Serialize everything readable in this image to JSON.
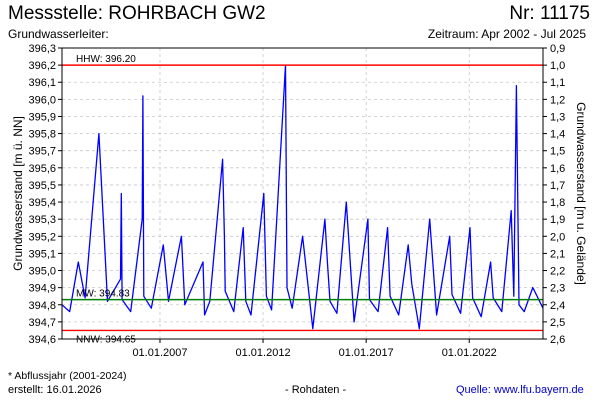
{
  "header": {
    "title": "Messstelle: ROHRBACH GW2",
    "number": "Nr: 11175",
    "aquifer": "Grundwasserleiter:",
    "period": "Zeitraum: Apr 2002 - Jul 2025"
  },
  "footer": {
    "footnote": "* Abflussjahr (2001-2024)",
    "created": "erstellt:  16.01.2026",
    "rawdata": "- Rohdaten -",
    "source": "Quelle: www.lfu.bayern.de"
  },
  "colors": {
    "series": "#0000ff",
    "hhw": "#ff0000",
    "nnw": "#ff0000",
    "mw": "#008000",
    "grid": "#c8c8c8"
  },
  "chart_data": {
    "type": "line",
    "ylabel": "Grundwasserstand [m ü. NN]",
    "ylabel_right": "Grundwasserstand [m u. Gelände]",
    "ylim": [
      394.6,
      396.3
    ],
    "ylim_right": [
      2.6,
      0.9
    ],
    "y_ticks": [
      "396,3",
      "396,2",
      "396,1",
      "396,0",
      "395,9",
      "395,8",
      "395,7",
      "395,6",
      "395,5",
      "395,4",
      "395,3",
      "395,2",
      "395,1",
      "395,0",
      "394,9",
      "394,8",
      "394,7",
      "394,6"
    ],
    "y_ticks_right": [
      "0,9",
      "1,0",
      "1,1",
      "1,2",
      "1,3",
      "1,4",
      "1,5",
      "1,6",
      "1,7",
      "1,8",
      "1,9",
      "2,0",
      "2,1",
      "2,2",
      "2,3",
      "2,4",
      "2,5",
      "2,6"
    ],
    "x_ticks": [
      "01.01.2007",
      "01.01.2012",
      "01.01.2017",
      "01.01.2022"
    ],
    "xlim": [
      "2002-04-01",
      "2025-07-31"
    ],
    "grid": true,
    "reference_lines": [
      {
        "label": "HHW: 396.20",
        "value": 396.2
      },
      {
        "label": "MW: 394.83",
        "value": 394.83
      },
      {
        "label": "NNW: 394.65",
        "value": 394.65
      }
    ],
    "series": [
      {
        "x": [
          "2002-04-01",
          "2002-08-15",
          "2003-01-15",
          "2003-05-15",
          "2004-01-15",
          "2004-06-15",
          "2005-02-01",
          "2005-02-15",
          "2005-03-01",
          "2005-08-01",
          "2006-02-20",
          "2006-03-05",
          "2006-03-20",
          "2006-08-01",
          "2007-03-01",
          "2007-06-01",
          "2008-01-15",
          "2008-03-15",
          "2009-02-01",
          "2009-03-01",
          "2009-06-01",
          "2010-01-15",
          "2010-02-15",
          "2010-03-01",
          "2010-08-01",
          "2011-01-15",
          "2011-03-01",
          "2011-06-01",
          "2012-01-15",
          "2012-03-01",
          "2012-06-01",
          "2013-02-01",
          "2013-03-01",
          "2013-06-01",
          "2013-12-01",
          "2014-06-01",
          "2015-01-01",
          "2015-02-15",
          "2015-04-01",
          "2015-08-01",
          "2016-01-15",
          "2016-06-01",
          "2017-02-01",
          "2017-03-01",
          "2017-08-01",
          "2018-01-15",
          "2018-03-01",
          "2018-08-01",
          "2019-01-15",
          "2019-03-20",
          "2019-08-01",
          "2020-02-01",
          "2020-06-01",
          "2021-01-20",
          "2021-03-01",
          "2021-08-01",
          "2022-01-15",
          "2022-03-01",
          "2022-08-01",
          "2023-01-15",
          "2023-03-01",
          "2023-08-01",
          "2024-01-15",
          "2024-03-01",
          "2024-04-15",
          "2024-06-01",
          "2024-09-01",
          "2025-02-01",
          "2025-07-31"
        ],
        "y": [
          394.8,
          394.76,
          395.05,
          394.84,
          395.8,
          394.82,
          394.95,
          395.45,
          394.83,
          394.76,
          395.3,
          396.02,
          394.85,
          394.78,
          395.15,
          394.82,
          395.2,
          394.8,
          395.05,
          394.74,
          394.82,
          395.65,
          395.2,
          394.88,
          394.76,
          395.25,
          394.82,
          394.74,
          395.45,
          394.85,
          394.77,
          396.2,
          394.9,
          394.78,
          395.2,
          394.66,
          395.3,
          395.05,
          394.82,
          394.75,
          395.4,
          394.7,
          395.3,
          394.83,
          394.76,
          395.25,
          394.85,
          394.74,
          395.15,
          394.92,
          394.66,
          395.3,
          394.74,
          395.2,
          394.86,
          394.75,
          395.25,
          394.84,
          394.73,
          395.05,
          394.84,
          394.76,
          395.35,
          394.85,
          396.08,
          394.8,
          394.76,
          394.9,
          394.78
        ]
      }
    ]
  }
}
